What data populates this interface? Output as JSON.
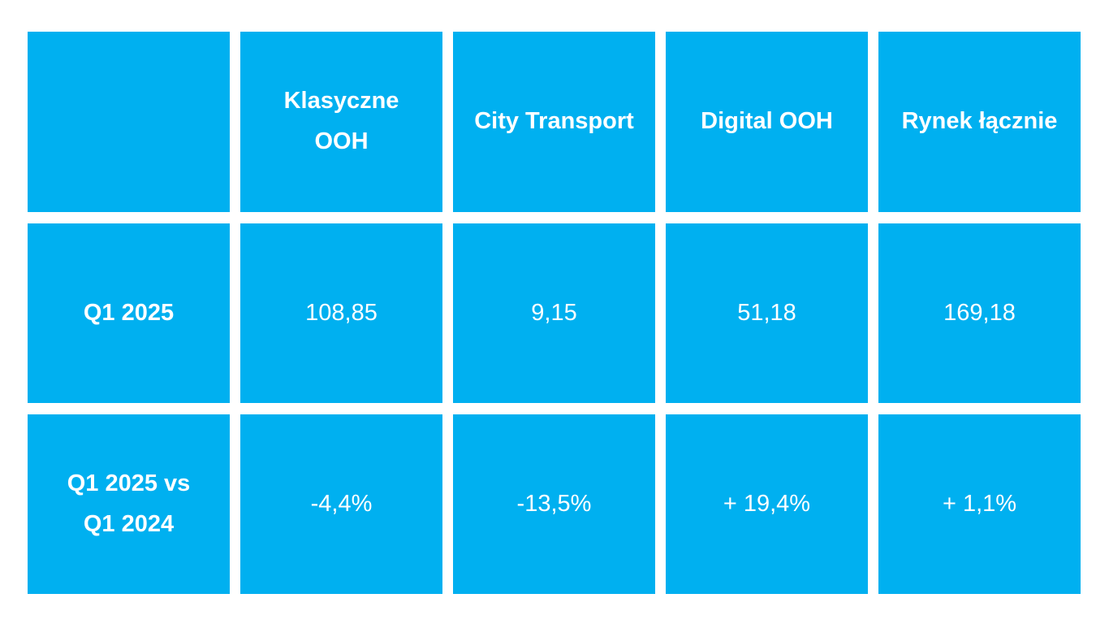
{
  "colors": {
    "cell_background": "#00B0F0",
    "text": "#FFFFFF",
    "page_background": "#FFFFFF"
  },
  "chart_data": {
    "type": "table",
    "title": "",
    "columns": [
      "Klasyczne OOH",
      "City Transport",
      "Digital OOH",
      "Rynek łącznie"
    ],
    "rows": [
      {
        "label": "Q1 2025",
        "values": [
          108.85,
          9.15,
          51.18,
          169.18
        ]
      },
      {
        "label": "Q1 2025 vs Q1 2024",
        "values": [
          "-4,4%",
          "-13,5%",
          "+ 19,4%",
          "+ 1,1%"
        ]
      }
    ]
  },
  "table": {
    "corner": "",
    "headers": [
      "Klasyczne\nOOH",
      "City Transport",
      "Digital OOH",
      "Rynek łącznie"
    ],
    "row_q1_2025": {
      "label": "Q1 2025",
      "klasyczne_ooh": "108,85",
      "city_transport": "9,15",
      "digital_ooh": "51,18",
      "rynek_lacznie": "169,18"
    },
    "row_q1_2025_vs_q1_2024": {
      "label": "Q1 2025 vs\nQ1 2024",
      "klasyczne_ooh": "-4,4%",
      "city_transport": "-13,5%",
      "digital_ooh": "+ 19,4%",
      "rynek_lacznie": "+ 1,1%"
    }
  }
}
